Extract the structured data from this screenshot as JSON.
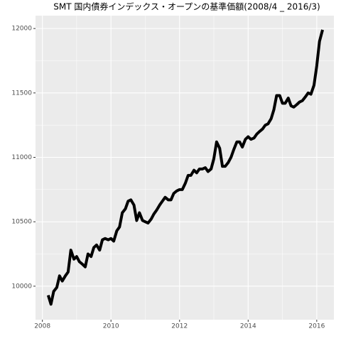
{
  "chart_data": {
    "type": "line",
    "title": "SMT 国内債券インデックス・オープンの基準価額(2008/4 _ 2016/3)",
    "x": [
      2008.17,
      2008.25,
      2008.33,
      2008.42,
      2008.5,
      2008.58,
      2008.67,
      2008.75,
      2008.83,
      2008.92,
      2009.0,
      2009.08,
      2009.17,
      2009.25,
      2009.33,
      2009.42,
      2009.5,
      2009.58,
      2009.67,
      2009.75,
      2009.83,
      2009.92,
      2010.0,
      2010.08,
      2010.17,
      2010.25,
      2010.33,
      2010.42,
      2010.5,
      2010.58,
      2010.67,
      2010.75,
      2010.83,
      2010.92,
      2011.0,
      2011.08,
      2011.17,
      2011.25,
      2011.33,
      2011.42,
      2011.5,
      2011.58,
      2011.67,
      2011.75,
      2011.83,
      2011.92,
      2012.0,
      2012.08,
      2012.17,
      2012.25,
      2012.33,
      2012.42,
      2012.5,
      2012.58,
      2012.67,
      2012.75,
      2012.83,
      2012.92,
      2013.0,
      2013.08,
      2013.17,
      2013.25,
      2013.33,
      2013.42,
      2013.5,
      2013.58,
      2013.67,
      2013.75,
      2013.83,
      2013.92,
      2014.0,
      2014.08,
      2014.17,
      2014.25,
      2014.33,
      2014.42,
      2014.5,
      2014.58,
      2014.67,
      2014.75,
      2014.83,
      2014.92,
      2015.0,
      2015.08,
      2015.17,
      2015.25,
      2015.33,
      2015.42,
      2015.5,
      2015.58,
      2015.67,
      2015.75,
      2015.83,
      2015.92,
      2016.0,
      2016.08,
      2016.17
    ],
    "series": [
      {
        "color": "#000000",
        "values": [
          9930,
          9860,
          9960,
          9990,
          10080,
          10040,
          10080,
          10110,
          10280,
          10210,
          10230,
          10190,
          10170,
          10150,
          10250,
          10230,
          10300,
          10320,
          10280,
          10360,
          10370,
          10360,
          10370,
          10350,
          10430,
          10460,
          10570,
          10600,
          10660,
          10670,
          10630,
          10510,
          10570,
          10510,
          10500,
          10490,
          10520,
          10560,
          10590,
          10630,
          10660,
          10690,
          10670,
          10670,
          10720,
          10740,
          10750,
          10750,
          10800,
          10860,
          10860,
          10900,
          10880,
          10910,
          10910,
          10920,
          10890,
          10910,
          10990,
          11120,
          11070,
          10930,
          10930,
          10960,
          11000,
          11060,
          11120,
          11120,
          11080,
          11140,
          11160,
          11140,
          11150,
          11180,
          11200,
          11220,
          11250,
          11260,
          11300,
          11370,
          11480,
          11480,
          11420,
          11420,
          11460,
          11400,
          11390,
          11410,
          11430,
          11440,
          11470,
          11500,
          11490,
          11560,
          11710,
          11900,
          11990
        ]
      }
    ],
    "xlim": [
      2007.8,
      2016.5
    ],
    "ylim": [
      9740,
      12100
    ],
    "xticks": [
      2008,
      2010,
      2012,
      2014,
      2016
    ],
    "yticks": [
      10000,
      10500,
      11000,
      11500,
      12000
    ],
    "grid": true
  }
}
